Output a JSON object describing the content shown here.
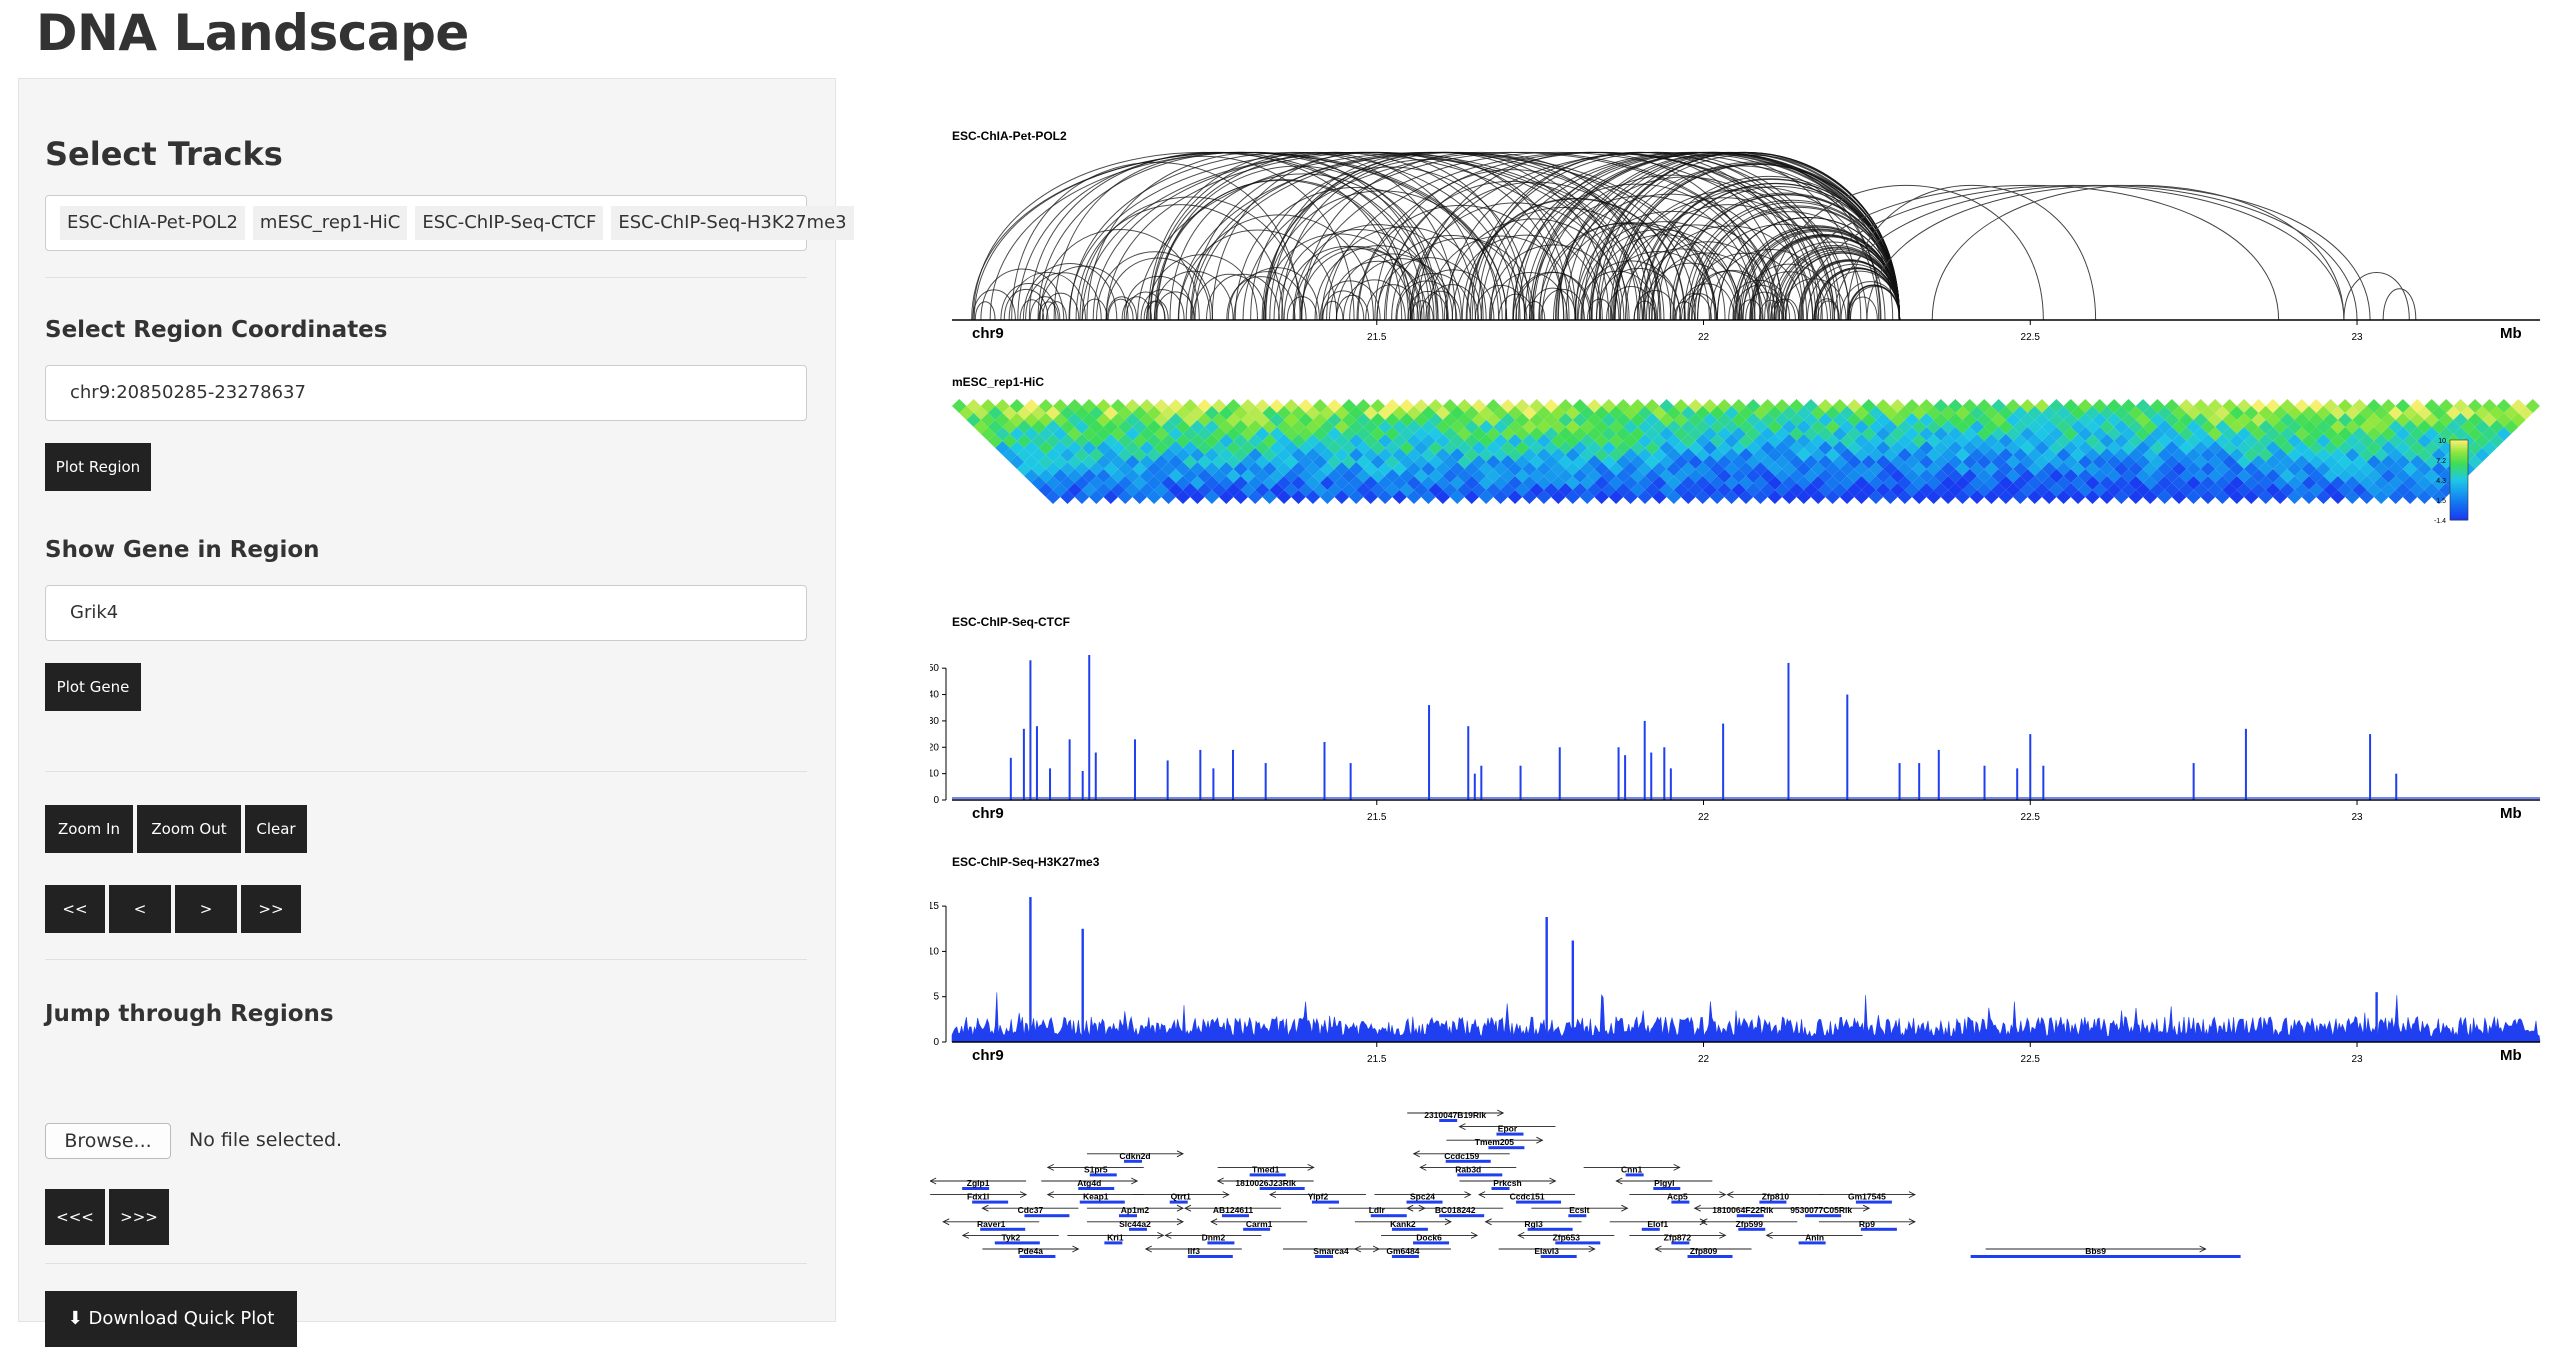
{
  "app": {
    "title": "DNA Landscape"
  },
  "sidebar": {
    "select_tracks_heading": "Select Tracks",
    "tracks": [
      "ESC-ChIA-Pet-POL2",
      "mESC_rep1-HiC",
      "ESC-ChIP-Seq-CTCF",
      "ESC-ChIP-Seq-H3K27me3"
    ],
    "region_heading": "Select Region Coordinates",
    "region_value": "chr9:20850285-23278637",
    "plot_region_label": "Plot Region",
    "gene_heading": "Show Gene in Region",
    "gene_value": "Grik4",
    "plot_gene_label": "Plot Gene",
    "zoom_in_label": "Zoom In",
    "zoom_out_label": "Zoom Out",
    "clear_label": "Clear",
    "nav_far_left_label": "<<",
    "nav_left_label": "<",
    "nav_right_label": ">",
    "nav_far_right_label": ">>",
    "jump_heading": "Jump through Regions",
    "browse_label": "Browse...",
    "file_status": "No file selected.",
    "jump_prev_label": "<<<",
    "jump_next_label": ">>>",
    "download_label": "Download Quick Plot"
  },
  "chart_data": [
    {
      "type": "arc",
      "title": "ESC-ChIA-Pet-POL2",
      "chrom": "chr9",
      "unit": "Mb",
      "xlim": [
        20.85,
        23.28
      ],
      "xticks": [
        "21.5",
        "22",
        "22.5",
        "23"
      ],
      "tick_values": [
        21.5,
        22,
        22.5,
        23
      ],
      "dense_region": [
        20.88,
        22.28
      ],
      "sparse_arcs": [
        [
          22.1,
          22.52
        ],
        [
          22.12,
          22.88
        ],
        [
          22.15,
          22.98
        ],
        [
          22.2,
          23.0
        ],
        [
          22.25,
          23.02
        ],
        [
          22.22,
          22.6
        ],
        [
          22.35,
          22.98
        ],
        [
          22.98,
          23.08
        ],
        [
          23.04,
          23.09
        ]
      ]
    },
    {
      "type": "heatmap",
      "title": "mESC_rep1-HiC",
      "colorbar_ticks": [
        "10",
        "7.2",
        "4.3",
        "1.5",
        "-1.4"
      ],
      "vmin": -1.4,
      "vmax": 10
    },
    {
      "type": "bar",
      "title": "ESC-ChIP-Seq-CTCF",
      "chrom": "chr9",
      "unit": "Mb",
      "xlim": [
        20.85,
        23.28
      ],
      "ylim": [
        0,
        55
      ],
      "yticks": [
        "0",
        "10",
        "20",
        "30",
        "40",
        "50"
      ],
      "xticks": [
        "21.5",
        "22",
        "22.5",
        "23"
      ],
      "tick_values": [
        21.5,
        22,
        22.5,
        23
      ],
      "x": [
        20.94,
        20.96,
        20.97,
        20.98,
        21.0,
        21.03,
        21.05,
        21.06,
        21.07,
        21.13,
        21.18,
        21.23,
        21.25,
        21.28,
        21.33,
        21.42,
        21.46,
        21.58,
        21.64,
        21.65,
        21.66,
        21.72,
        21.78,
        21.87,
        21.88,
        21.91,
        21.92,
        21.94,
        21.95,
        22.03,
        22.13,
        22.22,
        22.3,
        22.33,
        22.36,
        22.43,
        22.48,
        22.5,
        22.52,
        22.75,
        22.83,
        23.02,
        23.06
      ],
      "values": [
        16,
        27,
        53,
        28,
        12,
        23,
        11,
        55,
        18,
        23,
        15,
        19,
        12,
        19,
        14,
        22,
        14,
        36,
        28,
        10,
        13,
        13,
        20,
        20,
        17,
        30,
        18,
        20,
        12,
        29,
        52,
        40,
        14,
        14,
        19,
        13,
        12,
        25,
        13,
        14,
        27,
        25,
        10
      ]
    },
    {
      "type": "area",
      "title": "ESC-ChIP-Seq-H3K27me3",
      "chrom": "chr9",
      "unit": "Mb",
      "xlim": [
        20.85,
        23.28
      ],
      "ylim": [
        0,
        17
      ],
      "yticks": [
        "0",
        "5",
        "10",
        "15"
      ],
      "xticks": [
        "21.5",
        "22",
        "22.5",
        "23"
      ],
      "tick_values": [
        21.5,
        22,
        22.5,
        23
      ],
      "baseline_level": 2,
      "peaks": [
        [
          20.97,
          16
        ],
        [
          21.05,
          12.5
        ],
        [
          21.76,
          13.8
        ],
        [
          21.8,
          11.2
        ],
        [
          23.03,
          5.5
        ]
      ]
    },
    {
      "type": "gene-track",
      "genes": [
        {
          "name": "2310047B19Rik",
          "x": 21.62,
          "row": 0
        },
        {
          "name": "Epor",
          "x": 21.7,
          "row": 1
        },
        {
          "name": "Tmem205",
          "x": 21.68,
          "row": 2
        },
        {
          "name": "Ccdc159",
          "x": 21.63,
          "row": 3
        },
        {
          "name": "Cdkn2d",
          "x": 21.13,
          "row": 3
        },
        {
          "name": "S1pr5",
          "x": 21.07,
          "row": 4
        },
        {
          "name": "Tmed1",
          "x": 21.33,
          "row": 4
        },
        {
          "name": "Rab3d",
          "x": 21.64,
          "row": 4
        },
        {
          "name": "Cnn1",
          "x": 21.89,
          "row": 4
        },
        {
          "name": "Zglp1",
          "x": 20.89,
          "row": 5
        },
        {
          "name": "Atg4d",
          "x": 21.06,
          "row": 5
        },
        {
          "name": "1810026J23Rik",
          "x": 21.33,
          "row": 5
        },
        {
          "name": "Prkcsh",
          "x": 21.7,
          "row": 5
        },
        {
          "name": "Pigyl",
          "x": 21.94,
          "row": 5
        },
        {
          "name": "Fdx1l",
          "x": 20.89,
          "row": 6
        },
        {
          "name": "Keap1",
          "x": 21.07,
          "row": 6
        },
        {
          "name": "Qtrt1",
          "x": 21.2,
          "row": 6
        },
        {
          "name": "Yipf2",
          "x": 21.41,
          "row": 6
        },
        {
          "name": "Spc24",
          "x": 21.57,
          "row": 6
        },
        {
          "name": "Ccdc151",
          "x": 21.73,
          "row": 6
        },
        {
          "name": "Acp5",
          "x": 21.96,
          "row": 6
        },
        {
          "name": "Zfp810",
          "x": 22.11,
          "row": 6
        },
        {
          "name": "Gm17545",
          "x": 22.25,
          "row": 6
        },
        {
          "name": "Cdc37",
          "x": 20.97,
          "row": 7
        },
        {
          "name": "Ap1m2",
          "x": 21.13,
          "row": 7
        },
        {
          "name": "AB124611",
          "x": 21.28,
          "row": 7
        },
        {
          "name": "Ldlr",
          "x": 21.5,
          "row": 7
        },
        {
          "name": "BC018242",
          "x": 21.62,
          "row": 7
        },
        {
          "name": "Ecsit",
          "x": 21.81,
          "row": 7
        },
        {
          "name": "1810064F22Rik",
          "x": 22.06,
          "row": 7
        },
        {
          "name": "9530077C05Rik",
          "x": 22.18,
          "row": 7
        },
        {
          "name": "Raver1",
          "x": 20.91,
          "row": 8
        },
        {
          "name": "Slc44a2",
          "x": 21.13,
          "row": 8
        },
        {
          "name": "Carm1",
          "x": 21.32,
          "row": 8
        },
        {
          "name": "Kank2",
          "x": 21.54,
          "row": 8
        },
        {
          "name": "Rgl3",
          "x": 21.74,
          "row": 8
        },
        {
          "name": "Elof1",
          "x": 21.93,
          "row": 8
        },
        {
          "name": "Zfp599",
          "x": 22.07,
          "row": 8
        },
        {
          "name": "Rp9",
          "x": 22.25,
          "row": 8
        },
        {
          "name": "Tyk2",
          "x": 20.94,
          "row": 9
        },
        {
          "name": "Kri1",
          "x": 21.1,
          "row": 9
        },
        {
          "name": "Dnm2",
          "x": 21.25,
          "row": 9
        },
        {
          "name": "Dock6",
          "x": 21.58,
          "row": 9
        },
        {
          "name": "Zfp653",
          "x": 21.79,
          "row": 9
        },
        {
          "name": "Zfp872",
          "x": 21.96,
          "row": 9
        },
        {
          "name": "Anln",
          "x": 22.17,
          "row": 9
        },
        {
          "name": "Pde4a",
          "x": 20.97,
          "row": 10
        },
        {
          "name": "Ilf3",
          "x": 21.22,
          "row": 10
        },
        {
          "name": "Smarca4",
          "x": 21.43,
          "row": 10
        },
        {
          "name": "Gm6484",
          "x": 21.54,
          "row": 10
        },
        {
          "name": "Elavl3",
          "x": 21.76,
          "row": 10
        },
        {
          "name": "Zfp809",
          "x": 22.0,
          "row": 10
        },
        {
          "name": "Bbs9",
          "x": 22.6,
          "row": 10
        }
      ]
    }
  ]
}
